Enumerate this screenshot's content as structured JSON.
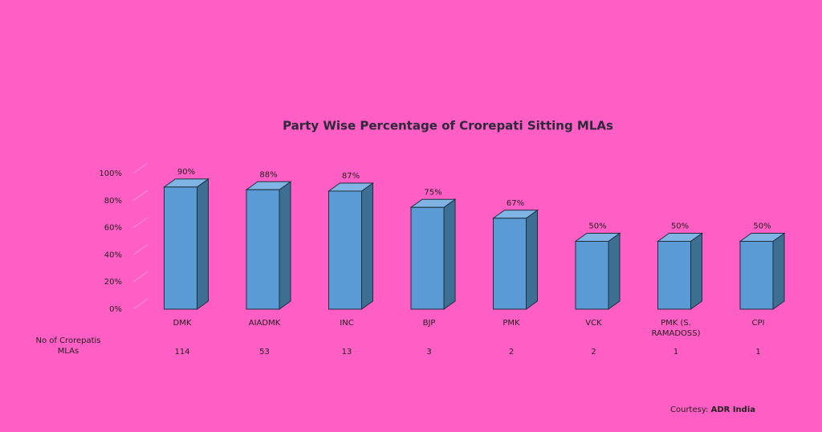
{
  "chart_data": {
    "type": "bar3d",
    "title": "Party Wise Percentage of Crorepati Sitting MLAs",
    "categories": [
      "DMK",
      "AIADMK",
      "INC",
      "BJP",
      "PMK",
      "VCK",
      "PMK (S. RAMADOSS)",
      "CPI"
    ],
    "values": [
      90,
      88,
      87,
      75,
      67,
      50,
      50,
      50
    ],
    "value_labels": [
      "90%",
      "88%",
      "87%",
      "75%",
      "67%",
      "50%",
      "50%",
      "50%"
    ],
    "color": "#5b9bd5",
    "ylim": [
      0,
      100
    ],
    "yticks": [
      {
        "value": 0,
        "label": "0%"
      },
      {
        "value": 20,
        "label": "20%"
      },
      {
        "value": 40,
        "label": "40%"
      },
      {
        "value": 60,
        "label": "60%"
      },
      {
        "value": 80,
        "label": "80%"
      },
      {
        "value": 100,
        "label": "100%"
      }
    ],
    "grid": true,
    "table_row": {
      "label": "No of Crorepatis MLAs",
      "values": [
        114,
        53,
        13,
        3,
        2,
        2,
        1,
        1
      ]
    },
    "source": {
      "prefix": "Courtesy:",
      "name": "ADR India"
    }
  }
}
